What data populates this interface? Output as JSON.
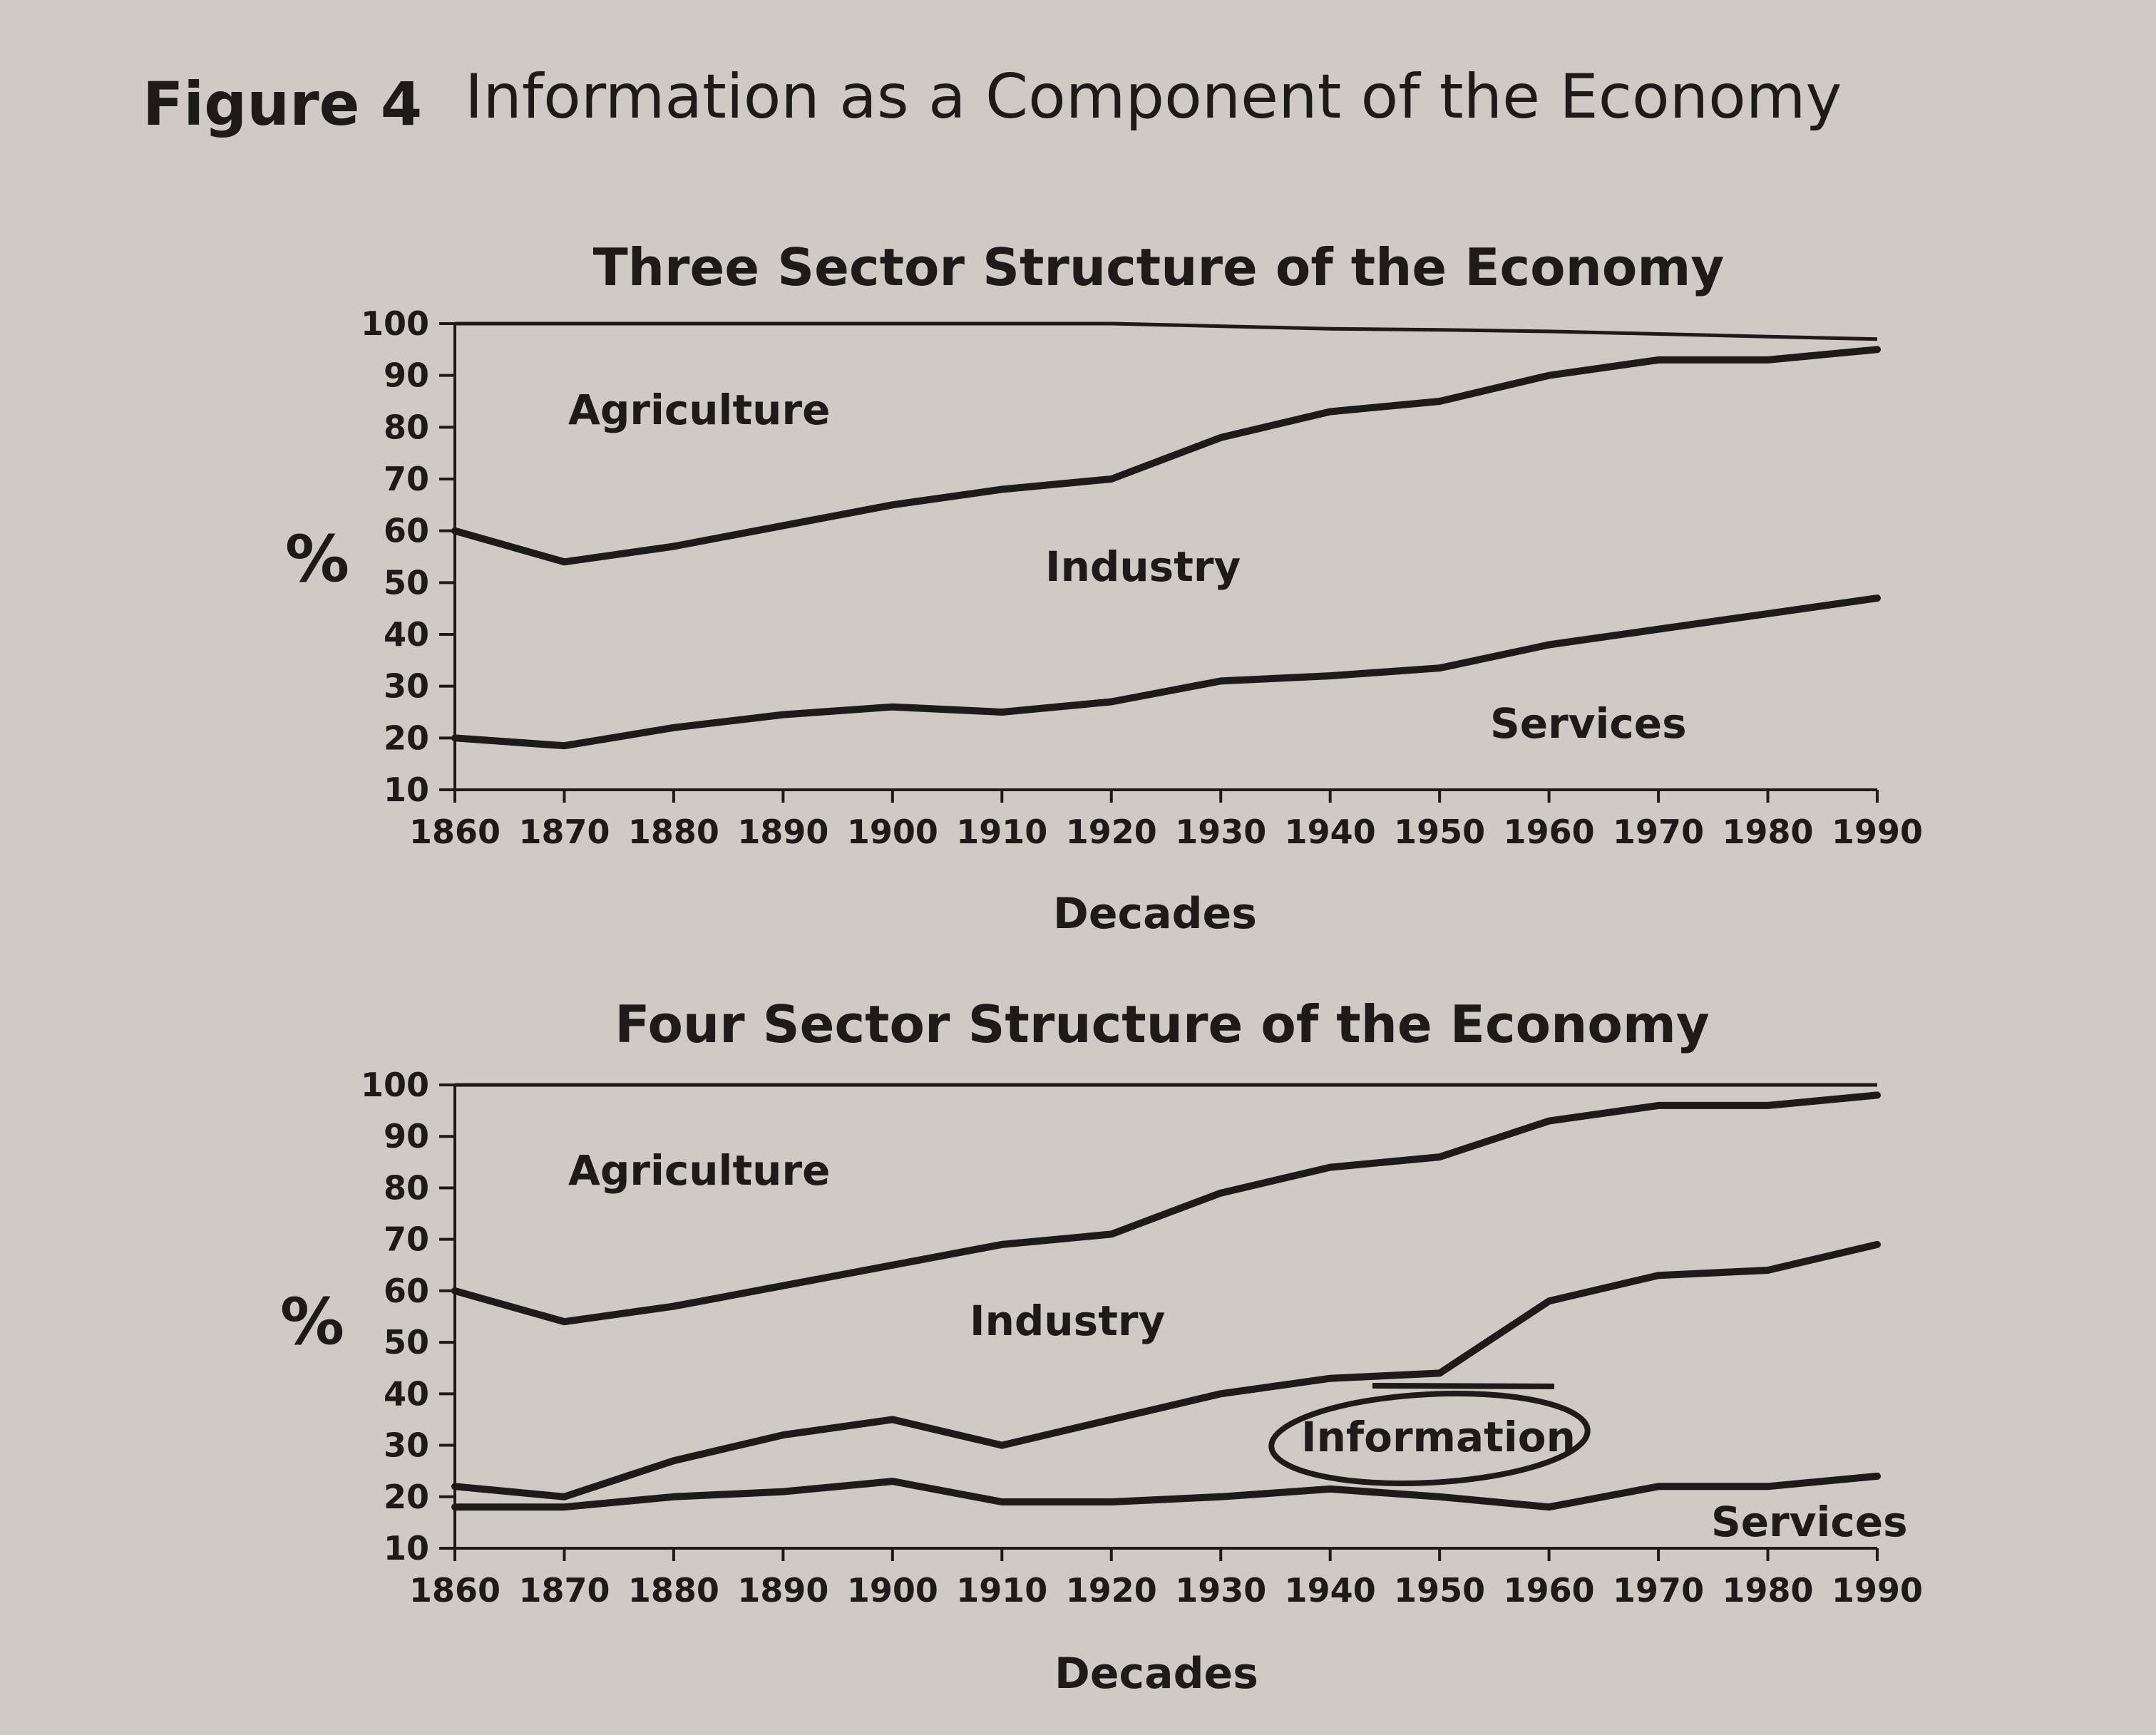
{
  "figure": {
    "label": "Figure 4",
    "title": "Information as a Component of the Economy"
  },
  "chart_data": [
    {
      "type": "area",
      "title": "Three Sector Structure of the Economy",
      "xlabel": "Decades",
      "ylabel": "%",
      "x": [
        1860,
        1870,
        1880,
        1890,
        1900,
        1910,
        1920,
        1930,
        1940,
        1950,
        1960,
        1970,
        1980,
        1990
      ],
      "xlim": [
        1860,
        1990
      ],
      "ylim": [
        10,
        100
      ],
      "yticks": [
        100,
        90,
        80,
        70,
        60,
        50,
        40,
        30,
        20,
        10
      ],
      "xticks": [
        1860,
        1870,
        1880,
        1890,
        1900,
        1910,
        1920,
        1930,
        1940,
        1950,
        1960,
        1970,
        1980,
        1990
      ],
      "boundaries": [
        {
          "name": "Services / Industry",
          "values": [
            20,
            18.5,
            22,
            24.5,
            26,
            25,
            27,
            31,
            32,
            33.5,
            38,
            41,
            44,
            47
          ]
        },
        {
          "name": "Industry / Agriculture",
          "values": [
            60,
            54,
            57,
            61,
            65,
            68,
            70,
            78,
            83,
            85,
            90,
            93,
            93,
            95
          ]
        },
        {
          "name": "Top",
          "values": [
            100,
            100,
            100,
            100,
            100,
            100,
            100,
            99.5,
            99,
            98.8,
            98.5,
            98,
            97.5,
            97
          ]
        }
      ],
      "region_labels": [
        "Agriculture",
        "Industry",
        "Services"
      ]
    },
    {
      "type": "area",
      "title": "Four Sector Structure of the Economy",
      "xlabel": "Decades",
      "ylabel": "%",
      "x": [
        1860,
        1870,
        1880,
        1890,
        1900,
        1910,
        1920,
        1930,
        1940,
        1950,
        1960,
        1970,
        1980,
        1990
      ],
      "xlim": [
        1860,
        1990
      ],
      "ylim": [
        10,
        100
      ],
      "yticks": [
        100,
        90,
        80,
        70,
        60,
        50,
        40,
        30,
        20,
        10
      ],
      "xticks": [
        1860,
        1870,
        1880,
        1890,
        1900,
        1910,
        1920,
        1930,
        1940,
        1950,
        1960,
        1970,
        1980,
        1990
      ],
      "boundaries": [
        {
          "name": "Services / Information",
          "values": [
            18,
            18,
            20,
            21,
            23,
            19,
            19,
            20,
            21.5,
            20,
            18,
            22,
            22,
            24
          ]
        },
        {
          "name": "Information / Industry",
          "values": [
            22,
            20,
            27,
            32,
            35,
            30,
            35,
            40,
            43,
            44,
            58,
            63,
            64,
            69
          ]
        },
        {
          "name": "Industry / Agriculture",
          "values": [
            60,
            54,
            57,
            61,
            65,
            69,
            71,
            79,
            84,
            86,
            93,
            96,
            96,
            98
          ]
        },
        {
          "name": "Top",
          "values": [
            100,
            100,
            100,
            100,
            100,
            100,
            100,
            100,
            100,
            100,
            100,
            100,
            100,
            100
          ]
        }
      ],
      "region_labels": [
        "Agriculture",
        "Industry",
        "Information",
        "Services"
      ]
    }
  ]
}
